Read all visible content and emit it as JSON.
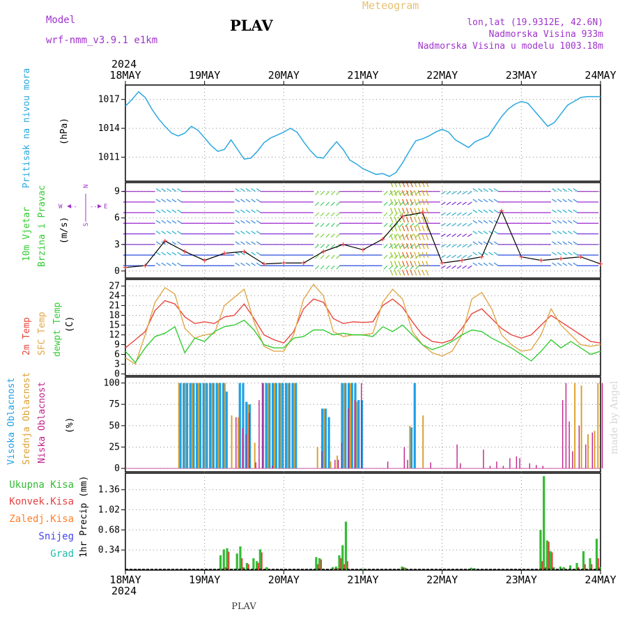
{
  "header": {
    "model_label": "Model",
    "model_name": "wrf-nmm_v3.9.1 e1km",
    "location": "PLAV",
    "meteogram": "Meteogram",
    "lonlat": "lon,lat (19.9312E, 42.6N)",
    "elevation": "Nadmorska Visina 933m",
    "elevation_model": "Nadmorska Visina u modelu 1003.18m",
    "watermark": "made by Angel",
    "footer_location": "PLAV",
    "year_top": "2024",
    "year_bottom": "2024"
  },
  "colors": {
    "pressure": "#2aa7e0",
    "temp2m": "#e8453c",
    "sfc": "#e0a84a",
    "dewpt": "#33cc33",
    "high_cloud": "#1ea0e6",
    "mid_cloud": "#dca030",
    "low_cloud": "#c0208a",
    "label_purple": "#a033cc",
    "precip_total": "#33bb33",
    "precip_conv": "#e84040",
    "precip_frz": "#ff7f2a",
    "snow": "#4444ee",
    "grad": "#22bbaa"
  },
  "chart_data": [
    {
      "type": "line",
      "id": "pressure",
      "ylabel": "Pritisak na nivou mora",
      "unit": "(hPa)",
      "yticks": [
        1011,
        1014,
        1017
      ],
      "ylim": [
        1008.5,
        1018.5
      ],
      "x_categories": [
        "18MAY",
        "19MAY",
        "20MAY",
        "21MAY",
        "22MAY",
        "23MAY",
        "24MAY"
      ],
      "x_hours": [
        0,
        2,
        4,
        6,
        8,
        10,
        12,
        14,
        16,
        18,
        20,
        22,
        24,
        26,
        28,
        30,
        32,
        34,
        36,
        38,
        40,
        42,
        44,
        46,
        48,
        50,
        52,
        54,
        56,
        58,
        60,
        62,
        64,
        66,
        68,
        70,
        72,
        74,
        76,
        78,
        80,
        82,
        84,
        86,
        88,
        90,
        92,
        94,
        96,
        98,
        100,
        102,
        104,
        106,
        108,
        110,
        112,
        114,
        116,
        118,
        120,
        122,
        124,
        126,
        128,
        130,
        132,
        134,
        136,
        138,
        140,
        142,
        144
      ],
      "values": [
        1016.3,
        1017.0,
        1017.8,
        1017.2,
        1016.0,
        1015.0,
        1014.2,
        1013.5,
        1013.2,
        1013.5,
        1014.2,
        1013.8,
        1013.0,
        1012.2,
        1011.6,
        1011.8,
        1012.8,
        1011.8,
        1010.8,
        1010.9,
        1011.6,
        1012.5,
        1013.0,
        1013.3,
        1013.6,
        1014.0,
        1013.6,
        1012.6,
        1011.7,
        1011.0,
        1010.9,
        1011.8,
        1012.6,
        1011.8,
        1010.7,
        1010.3,
        1009.8,
        1009.5,
        1009.2,
        1009.3,
        1009.0,
        1009.4,
        1010.4,
        1011.6,
        1012.7,
        1012.9,
        1013.2,
        1013.6,
        1013.9,
        1013.6,
        1012.8,
        1012.4,
        1012.0,
        1012.6,
        1012.9,
        1013.2,
        1014.2,
        1015.2,
        1016.0,
        1016.5,
        1016.8,
        1016.6,
        1015.8,
        1015.0,
        1014.2,
        1014.6,
        1015.5,
        1016.4,
        1016.8,
        1017.2,
        1017.3,
        1017.3,
        1017.3
      ]
    },
    {
      "type": "scatter",
      "id": "wind",
      "ylabel1": "10m Vjetar",
      "ylabel2": "Brzina i Pravac",
      "unit": "(m/s)",
      "yticks": [
        0,
        3,
        6,
        9
      ],
      "ylim": [
        -0.8,
        10
      ],
      "compass": {
        "n": "N",
        "s": "S",
        "e": "E",
        "w": "W",
        "dash": "--"
      },
      "x_hours": [
        0,
        6,
        12,
        18,
        24,
        30,
        36,
        42,
        48,
        54,
        60,
        66,
        72,
        78,
        84,
        90,
        96,
        102,
        108,
        114,
        120,
        126,
        132,
        138,
        144
      ],
      "speed": [
        0.4,
        0.6,
        3.4,
        2.2,
        1.2,
        2.0,
        2.2,
        0.8,
        0.9,
        0.9,
        2.2,
        3.0,
        2.4,
        3.6,
        6.2,
        6.6,
        0.9,
        1.2,
        1.6,
        6.8,
        1.6,
        1.2,
        1.4,
        1.6,
        0.8
      ]
    },
    {
      "type": "line",
      "id": "temperature",
      "ylabel1": "2m Temp",
      "ylabel2": "SFC Temp",
      "ylabel3": "dewpt Temp",
      "unit": "(C)",
      "yticks": [
        0,
        3,
        6,
        9,
        12,
        15,
        18,
        21,
        24,
        27
      ],
      "ylim": [
        -0.5,
        29
      ],
      "x_hours": [
        0,
        3,
        6,
        9,
        12,
        15,
        18,
        21,
        24,
        27,
        30,
        33,
        36,
        39,
        42,
        45,
        48,
        51,
        54,
        57,
        60,
        63,
        66,
        69,
        72,
        75,
        78,
        81,
        84,
        87,
        90,
        93,
        96,
        99,
        102,
        105,
        108,
        111,
        114,
        117,
        120,
        123,
        126,
        129,
        132,
        135,
        138,
        141,
        144
      ],
      "series": [
        {
          "name": "2m Temp",
          "values": [
            8.0,
            10.5,
            13.0,
            19.5,
            22.5,
            21.5,
            17.5,
            15.5,
            16.0,
            15.5,
            17.5,
            18.0,
            21.5,
            17.0,
            12.0,
            10.5,
            9.5,
            13.0,
            20.0,
            23.0,
            22.0,
            17.0,
            15.5,
            16.0,
            15.8,
            16.0,
            21.0,
            23.0,
            20.5,
            16.0,
            12.0,
            10.0,
            9.5,
            10.5,
            14.0,
            18.5,
            20.0,
            17.0,
            14.0,
            12.0,
            11.0,
            12.0,
            15.0,
            18.0,
            16.0,
            14.0,
            12.0,
            10.0,
            9.5
          ]
        },
        {
          "name": "SFC Temp",
          "values": [
            5.0,
            3.0,
            12.0,
            22.0,
            26.5,
            24.5,
            14.0,
            11.0,
            12.0,
            12.5,
            21.0,
            23.5,
            26.0,
            16.0,
            8.5,
            7.0,
            7.0,
            12.0,
            23.0,
            27.5,
            24.0,
            13.0,
            11.5,
            12.0,
            12.0,
            12.5,
            22.0,
            26.0,
            23.0,
            13.0,
            9.0,
            6.5,
            5.5,
            7.0,
            12.0,
            23.0,
            25.0,
            20.0,
            12.0,
            9.0,
            7.0,
            7.5,
            12.0,
            20.0,
            15.0,
            12.0,
            9.0,
            8.5,
            9.0
          ]
        },
        {
          "name": "dewpt Temp",
          "values": [
            7.0,
            3.5,
            8.0,
            11.5,
            12.5,
            14.5,
            6.5,
            11.0,
            10.0,
            13.0,
            14.5,
            15.0,
            16.5,
            13.5,
            9.0,
            8.0,
            8.0,
            11.0,
            11.5,
            13.5,
            13.5,
            12.0,
            12.5,
            12.0,
            12.0,
            11.5,
            14.5,
            13.0,
            15.0,
            12.0,
            9.0,
            7.5,
            8.5,
            10.0,
            12.0,
            13.5,
            13.0,
            11.0,
            9.5,
            8.0,
            6.0,
            4.0,
            7.0,
            10.5,
            8.0,
            10.0,
            8.0,
            6.0,
            7.0
          ]
        }
      ]
    },
    {
      "type": "bar",
      "id": "clouds",
      "ylabel1": "Visoka Oblacnost",
      "ylabel2": "Srednja Oblacnost",
      "ylabel3": "Niska Oblacnost",
      "unit": "(%)",
      "yticks": [
        0,
        25,
        50,
        75,
        100
      ],
      "ylim": [
        -4,
        107
      ],
      "series": [
        {
          "name": "Visoka Oblacnost",
          "hours": [
            17,
            18,
            19,
            20,
            21,
            22,
            23,
            24,
            25,
            26,
            27,
            28,
            29,
            30,
            31,
            35,
            36,
            37,
            38,
            42,
            43,
            44,
            45,
            46,
            47,
            48,
            49,
            50,
            51,
            52,
            60,
            61,
            62,
            66,
            67,
            68,
            69,
            70,
            71,
            72,
            87,
            88
          ],
          "values": [
            100,
            100,
            100,
            100,
            100,
            100,
            100,
            100,
            100,
            100,
            100,
            100,
            100,
            100,
            90,
            100,
            100,
            78,
            75,
            100,
            100,
            100,
            100,
            100,
            100,
            100,
            100,
            100,
            100,
            100,
            70,
            70,
            60,
            100,
            100,
            100,
            100,
            100,
            80,
            80,
            48,
            100
          ]
        },
        {
          "name": "Srednja Oblacnost",
          "hours": [
            16,
            18,
            20,
            22,
            24,
            26,
            28,
            30,
            32,
            34,
            37,
            39,
            43,
            45,
            47,
            49,
            51,
            58,
            60,
            62,
            64,
            66,
            68,
            70,
            86,
            90,
            136,
            138,
            140,
            142,
            143
          ],
          "values": [
            100,
            100,
            100,
            100,
            100,
            100,
            100,
            100,
            62,
            60,
            75,
            30,
            100,
            100,
            100,
            100,
            100,
            25,
            70,
            8,
            15,
            100,
            100,
            78,
            50,
            62,
            100,
            97,
            40,
            44,
            100
          ]
        },
        {
          "name": "Niska Oblacnost",
          "hours": [
            33,
            35,
            36,
            37,
            39,
            40,
            41,
            44,
            59,
            63,
            64,
            65,
            67,
            69,
            71,
            79,
            84,
            85,
            92,
            99,
            100,
            101,
            108,
            110,
            112,
            114,
            116,
            118,
            119,
            122,
            124,
            126,
            132,
            133,
            134,
            135,
            137,
            139,
            141,
            144
          ],
          "values": [
            60,
            47,
            40,
            65,
            7,
            80,
            100,
            3,
            20,
            10,
            10,
            30,
            70,
            80,
            100,
            8,
            25,
            10,
            7,
            0,
            28,
            6,
            22,
            3,
            8,
            3,
            12,
            14,
            12,
            6,
            4,
            3,
            80,
            100,
            55,
            20,
            50,
            28,
            42,
            100
          ]
        }
      ]
    },
    {
      "type": "bar",
      "id": "precip",
      "ylabel1": "Ukupna Kisa",
      "ylabel2": "Konvek.Kisa",
      "ylabel3": "Zaledj.Kisa",
      "ylabel4": "Snijeg",
      "ylabel5": "Grad",
      "ylabel": "1hr Precip (mm)",
      "yticks": [
        0.34,
        0.68,
        1.02,
        1.36
      ],
      "ylim": [
        0,
        1.64
      ],
      "series": [
        {
          "name": "Ukupna Kisa",
          "hours": [
            29,
            30,
            31,
            33,
            34,
            35,
            36,
            37,
            39,
            40,
            41,
            43,
            58,
            59,
            63,
            64,
            65,
            66,
            67,
            72,
            84,
            85,
            105,
            106,
            126,
            127,
            128,
            129,
            130,
            132,
            133,
            135,
            137,
            139,
            141,
            143,
            144
          ],
          "values": [
            0.25,
            0.35,
            0.37,
            0.02,
            0.28,
            0.4,
            0.05,
            0.12,
            0.2,
            0.15,
            0.35,
            0.05,
            0.22,
            0.2,
            0.05,
            0.06,
            0.25,
            0.42,
            0.82,
            0.02,
            0.06,
            0.04,
            0.04,
            0.03,
            0.68,
            1.59,
            0.5,
            0.32,
            0.05,
            0.06,
            0.05,
            0.08,
            0.12,
            0.32,
            0.2,
            0.53,
            0.05
          ]
        },
        {
          "name": "Konvek.Kisa",
          "hours": [
            30,
            31,
            35,
            37,
            40,
            41,
            58,
            59,
            63,
            64,
            65,
            66,
            67,
            84,
            126,
            127,
            128,
            129,
            137,
            139,
            141,
            143
          ],
          "values": [
            0.05,
            0.31,
            0.2,
            0.1,
            0.12,
            0.3,
            0.1,
            0.18,
            0.02,
            0.03,
            0.2,
            0.1,
            0.15,
            0.05,
            0.15,
            0.05,
            0.48,
            0.3,
            0.05,
            0.1,
            0.1,
            0.2
          ]
        }
      ]
    }
  ]
}
